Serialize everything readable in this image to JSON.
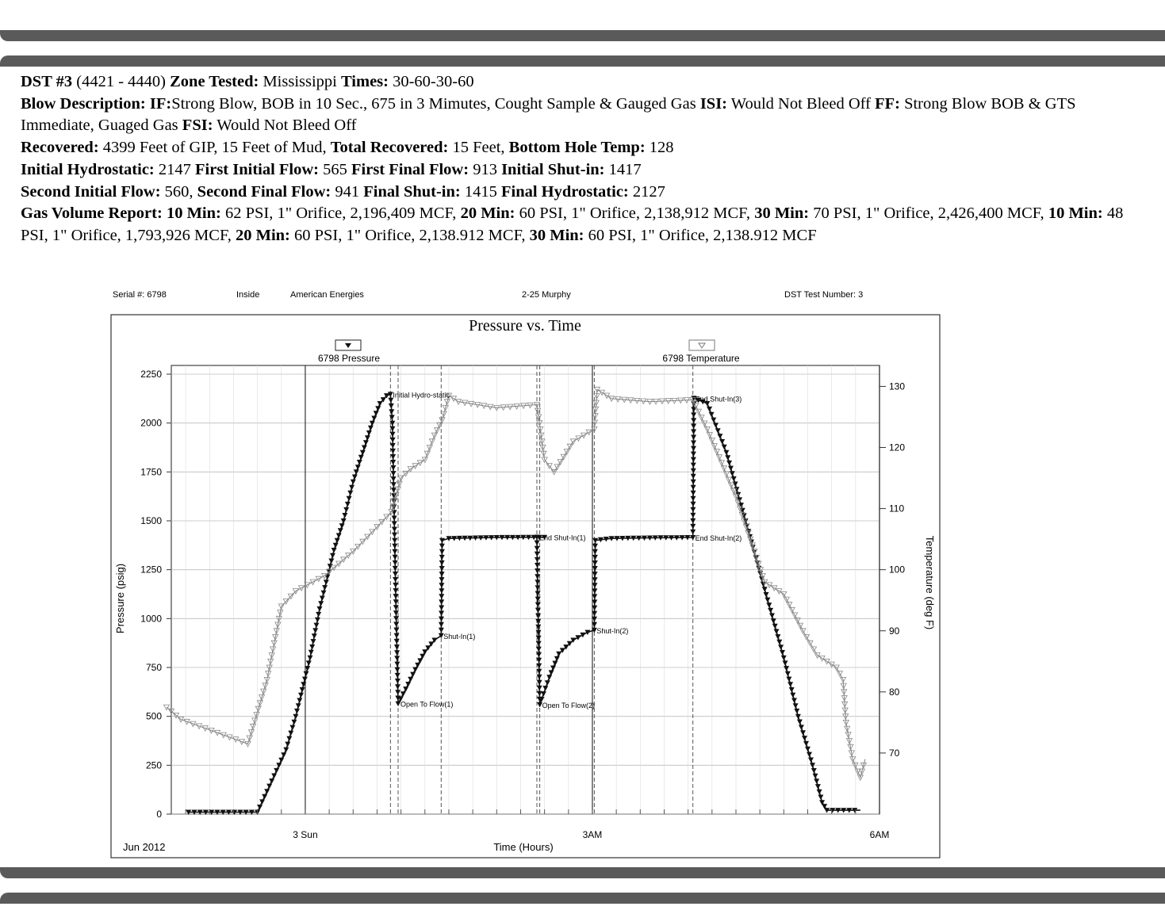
{
  "report": {
    "line1": {
      "dst_label": "DST #3",
      "interval": "(4421 - 4440)",
      "zone_label": "Zone Tested:",
      "zone_value": "Mississippi",
      "times_label": "Times:",
      "times_value": "30-60-30-60"
    },
    "blow": {
      "label": "Blow Description:",
      "if_label": "IF:",
      "if_value": "Strong Blow, BOB in 10 Sec., 675 in 3 Mimutes, Cought Sample & Gauged Gas",
      "isi_label": "ISI:",
      "isi_value": "Would Not Bleed Off",
      "ff_label": "FF:",
      "ff_value": "Strong Blow BOB & GTS Immediate, Guaged Gas",
      "fsi_label": "FSI:",
      "fsi_value": "Would Not Bleed Off"
    },
    "recovered": {
      "label": "Recovered:",
      "value": "4399 Feet of GIP, 15 Feet of Mud,",
      "total_label": "Total Recovered:",
      "total_value": "15 Feet,",
      "bht_label": "Bottom Hole Temp:",
      "bht_value": "128"
    },
    "pressures1": {
      "ih_label": "Initial Hydrostatic:",
      "ih_value": "2147",
      "fif_label": "First Initial Flow:",
      "fif_value": "565",
      "fff_label": "First Final Flow:",
      "fff_value": "913",
      "isi_label": "Initial Shut-in:",
      "isi_value": "1417"
    },
    "pressures2": {
      "sif_label": "Second Initial Flow:",
      "sif_value": "560,",
      "sff_label": "Second Final Flow:",
      "sff_value": "941",
      "fsi_label": "Final Shut-in:",
      "fsi_value": "1415",
      "fh_label": "Final Hydrostatic:",
      "fh_value": "2127"
    },
    "gas": {
      "label": "Gas Volume Report:",
      "r1_label": "10 Min:",
      "r1_value": "62 PSI, 1\" Orifice, 2,196,409 MCF,",
      "r2_label": "20 Min:",
      "r2_value": "60 PSI, 1\" Orifice, 2,138,912 MCF,",
      "r3_label": "30 Min:",
      "r3_value": "70 PSI, 1\" Orifice, 2,426,400 MCF,",
      "r4_label": "10 Min:",
      "r4_value": "48 PSI, 1\" Orifice, 1,793,926 MCF,",
      "r5_label": "20 Min:",
      "r5_value": "60 PSI, 1\" Orifice, 2,138.912 MCF,",
      "r6_label": "30 Min:",
      "r6_value": "60 PSI, 1\" Orifice, 2,138.912 MCF"
    }
  },
  "chart_header": {
    "serial": "Serial #:  6798",
    "inside": "Inside",
    "company": "American Energies",
    "well": "2-25 Murphy",
    "test_number": "DST Test Number: 3"
  },
  "chart_data": {
    "type": "line",
    "title": "Pressure vs. Time",
    "xlabel": "Time (Hours)",
    "ylabel": "Pressure (psig)",
    "y2label": "Temperature (deg F)",
    "x_unit": "hours after midnight, Jun 3 2012",
    "xlim": [
      -1.4,
      6.0
    ],
    "ylim": [
      0,
      2250
    ],
    "y2lim": [
      60,
      132
    ],
    "x_ticks": [
      {
        "x": 0,
        "label": "3 Sun"
      },
      {
        "x": 3,
        "label": "3AM"
      },
      {
        "x": 6,
        "label": "6AM"
      }
    ],
    "x_corner_label": "Jun 2012",
    "y_ticks": [
      0,
      250,
      500,
      750,
      1000,
      1250,
      1500,
      1750,
      2000,
      2250
    ],
    "y2_ticks": [
      70,
      80,
      90,
      100,
      110,
      120,
      130
    ],
    "grid": true,
    "legend": [
      "6798 Pressure",
      "6798 Temperature"
    ],
    "series": [
      {
        "name": "6798 Pressure",
        "axis": "left",
        "color": "#111111",
        "marker": "filled-triangle",
        "points": [
          [
            -1.22,
            10
          ],
          [
            -1.1,
            10
          ],
          [
            -1.04,
            10
          ],
          [
            -0.5,
            10
          ],
          [
            -0.2,
            330
          ],
          [
            -0.1,
            500
          ],
          [
            0.05,
            800
          ],
          [
            0.15,
            1050
          ],
          [
            0.3,
            1350
          ],
          [
            0.4,
            1500
          ],
          [
            0.5,
            1700
          ],
          [
            0.6,
            1850
          ],
          [
            0.7,
            2000
          ],
          [
            0.78,
            2100
          ],
          [
            0.85,
            2140
          ],
          [
            0.89,
            2147
          ],
          [
            0.91,
            2000
          ],
          [
            0.95,
            1000
          ],
          [
            0.97,
            565
          ],
          [
            1.05,
            640
          ],
          [
            1.15,
            740
          ],
          [
            1.25,
            830
          ],
          [
            1.35,
            890
          ],
          [
            1.42,
            913
          ],
          [
            1.43,
            1400
          ],
          [
            1.5,
            1410
          ],
          [
            2.0,
            1415
          ],
          [
            2.5,
            1416
          ],
          [
            2.42,
            1417
          ],
          [
            2.43,
            1100
          ],
          [
            2.45,
            560
          ],
          [
            2.55,
            700
          ],
          [
            2.65,
            820
          ],
          [
            2.8,
            890
          ],
          [
            2.95,
            930
          ],
          [
            3.02,
            941
          ],
          [
            3.03,
            1400
          ],
          [
            3.2,
            1410
          ],
          [
            3.6,
            1413
          ],
          [
            4.05,
            1415
          ],
          [
            4.06,
            2127
          ],
          [
            4.2,
            2100
          ],
          [
            4.4,
            1850
          ],
          [
            4.6,
            1500
          ],
          [
            4.8,
            1150
          ],
          [
            5.0,
            800
          ],
          [
            5.15,
            500
          ],
          [
            5.3,
            250
          ],
          [
            5.4,
            60
          ],
          [
            5.45,
            20
          ],
          [
            5.8,
            20
          ]
        ]
      },
      {
        "name": "6798 Temperature",
        "axis": "right",
        "color": "#8a8a8a",
        "marker": "open-triangle",
        "points": [
          [
            -1.45,
            77.5
          ],
          [
            -1.3,
            75.5
          ],
          [
            -0.6,
            71.5
          ],
          [
            -0.4,
            82
          ],
          [
            -0.25,
            94
          ],
          [
            -0.1,
            96.5
          ],
          [
            0.2,
            99
          ],
          [
            0.5,
            103
          ],
          [
            0.75,
            107
          ],
          [
            0.9,
            109.5
          ],
          [
            1.0,
            115
          ],
          [
            1.1,
            116.5
          ],
          [
            1.25,
            118
          ],
          [
            1.35,
            122
          ],
          [
            1.43,
            124.5
          ],
          [
            1.5,
            128.5
          ],
          [
            1.6,
            127.5
          ],
          [
            2.0,
            126.5
          ],
          [
            2.42,
            127
          ],
          [
            2.5,
            118
          ],
          [
            2.6,
            116
          ],
          [
            2.8,
            121
          ],
          [
            3.02,
            123
          ],
          [
            3.05,
            129.5
          ],
          [
            3.2,
            128
          ],
          [
            3.6,
            127.5
          ],
          [
            4.05,
            127.8
          ],
          [
            4.2,
            123
          ],
          [
            4.5,
            112
          ],
          [
            4.8,
            98
          ],
          [
            5.0,
            96
          ],
          [
            5.2,
            90
          ],
          [
            5.35,
            86
          ],
          [
            5.55,
            84
          ],
          [
            5.62,
            82
          ],
          [
            5.65,
            75
          ],
          [
            5.72,
            69
          ],
          [
            5.8,
            66
          ],
          [
            5.85,
            69
          ]
        ]
      }
    ],
    "events": [
      {
        "label": "Initial Hydro-static",
        "x": 0.89,
        "y": 2147
      },
      {
        "label": "Open To Flow(1)",
        "x": 0.97,
        "y": 565
      },
      {
        "label": "Shut-In(1)",
        "x": 1.42,
        "y": 913
      },
      {
        "label": "End Shut-In(1)",
        "x": 2.42,
        "y": 1417
      },
      {
        "label": "Open To Flow(2)",
        "x": 2.45,
        "y": 560
      },
      {
        "label": "Shut-In(2)",
        "x": 3.02,
        "y": 941
      },
      {
        "label": "End Shut-In(2)",
        "x": 4.05,
        "y": 1415
      },
      {
        "label": "End Shut-In(3)",
        "x": 4.05,
        "y": 2127
      }
    ]
  }
}
